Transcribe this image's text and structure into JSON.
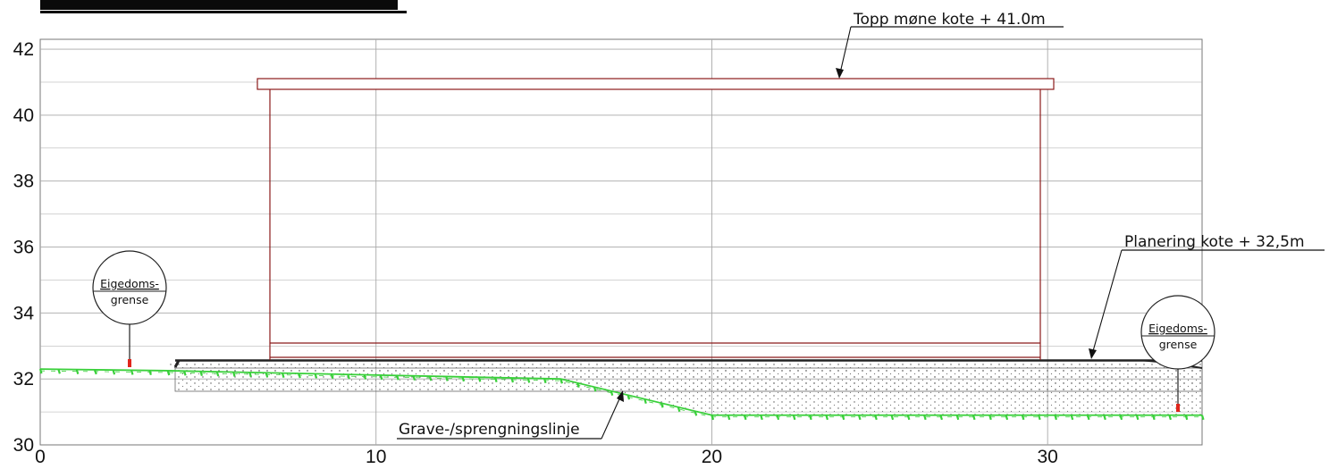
{
  "section": {
    "x_ticks": [
      "0",
      "10",
      "20",
      "30"
    ],
    "y_ticks": [
      "30",
      "32",
      "34",
      "36",
      "38",
      "40",
      "42"
    ],
    "x_domain": [
      0,
      34.6
    ],
    "y_domain": [
      30,
      42.3
    ],
    "annotations": {
      "ridge": "Topp møne kote + 41.0m",
      "grading": "Planering kote + 32,5m",
      "excavation": "Grave-/sprengningslinje"
    },
    "boundary_marker": {
      "line1": "Eigedoms-",
      "line2": "grense"
    },
    "existing_terrain": [
      [
        0,
        32.3
      ],
      [
        3.8,
        32.25
      ],
      [
        15.5,
        32.0
      ],
      [
        20,
        30.9
      ],
      [
        34.6,
        30.9
      ]
    ],
    "building": {
      "floor": 32.5,
      "ridge": 41.0,
      "x_from": 6.6,
      "x_to": 29.6
    },
    "property_boundaries": [
      2.6,
      34.3
    ],
    "colors": {
      "building": "#8b1a1a",
      "terrain": "#39d03a",
      "marker": "#e0261c",
      "grid": "#a8a8a8"
    }
  }
}
